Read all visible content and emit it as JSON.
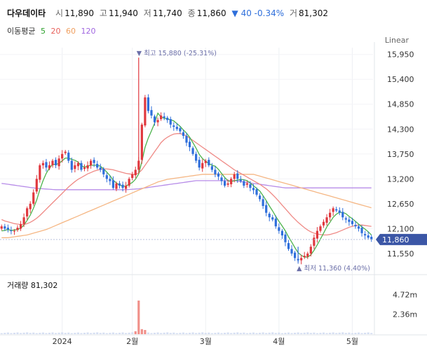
{
  "header": {
    "name": "다우데이타",
    "open_label": "시",
    "open": "11,890",
    "high_label": "고",
    "high": "11,940",
    "low_label": "저",
    "low": "11,740",
    "close_label": "종",
    "close": "11,860",
    "change": "▼ 40 -0.34%",
    "volume_label": "거",
    "volume": "81,302"
  },
  "ma_legend": {
    "label": "이동평균",
    "items": [
      {
        "period": "5",
        "color": "#2ca02c"
      },
      {
        "period": "20",
        "color": "#e8605a"
      },
      {
        "period": "60",
        "color": "#f0a060"
      },
      {
        "period": "120",
        "color": "#a066e0"
      }
    ]
  },
  "scale_type": "Linear",
  "volume_title": "거래량 81,302",
  "colors": {
    "up": "#e0383e",
    "down": "#2f6fdb",
    "current_price_bg": "#3b56a6",
    "volume_bar": "#d6dff2",
    "volume_spike": "#f0908a"
  },
  "chart_data": {
    "type": "candlestick",
    "price_axis": {
      "ticks": [
        "15,950",
        "15,400",
        "14,850",
        "14,300",
        "13,750",
        "13,200",
        "12,650",
        "12,100",
        "11,550"
      ],
      "ylim": [
        11300,
        16100
      ]
    },
    "current_price": "11,860",
    "x_labels": [
      "2024",
      "2월",
      "3월",
      "4월",
      "5월"
    ],
    "annotations": {
      "high": "▼ 최고 15,880 (-25.31%)",
      "low": "▲ 최저 11,360 (4.40%)"
    },
    "volume_axis": {
      "ticks": [
        "4.72m",
        "2.36m"
      ]
    },
    "series": {
      "close": [
        12150,
        12100,
        12080,
        12050,
        12050,
        12120,
        12200,
        12350,
        12550,
        12650,
        12900,
        13200,
        13500,
        13550,
        13450,
        13500,
        13600,
        13500,
        13650,
        13750,
        13800,
        13600,
        13400,
        13500,
        13550,
        13400,
        13450,
        13500,
        13600,
        13550,
        13450,
        13400,
        13300,
        13200,
        13150,
        13000,
        13100,
        13050,
        13000,
        13050,
        13200,
        13300,
        13400,
        13600,
        14400,
        15000,
        14700,
        14600,
        14450,
        14500,
        14600,
        14550,
        14500,
        14400,
        14350,
        14300,
        14250,
        14150,
        14000,
        13900,
        13750,
        13600,
        13450,
        13550,
        13600,
        13500,
        13400,
        13300,
        13250,
        13150,
        13050,
        13100,
        13200,
        13300,
        13200,
        13150,
        13050,
        13100,
        13000,
        12950,
        12850,
        12750,
        12600,
        12450,
        12350,
        12300,
        12150,
        12050,
        11950,
        11800,
        11650,
        11550,
        11450,
        11400,
        11450,
        11500,
        11550,
        11700,
        11900,
        12050,
        12150,
        12250,
        12350,
        12450,
        12550,
        12500,
        12450,
        12350,
        12300,
        12250,
        12200,
        12150,
        12100,
        12000,
        11950,
        11900,
        11860
      ],
      "ma5": [
        12050,
        12060,
        12080,
        12060,
        12070,
        12080,
        12110,
        12180,
        12280,
        12400,
        12550,
        12730,
        12960,
        13160,
        13320,
        13440,
        13520,
        13520,
        13540,
        13600,
        13660,
        13660,
        13630,
        13610,
        13570,
        13490,
        13460,
        13480,
        13500,
        13500,
        13500,
        13480,
        13420,
        13350,
        13270,
        13170,
        13110,
        13060,
        13040,
        13040,
        13080,
        13120,
        13190,
        13310,
        13580,
        13900,
        14100,
        14260,
        14430,
        14650,
        14570,
        14540,
        14520,
        14510,
        14480,
        14420,
        14360,
        14280,
        14210,
        14120,
        14000,
        13880,
        13740,
        13650,
        13590,
        13540,
        13500,
        13480,
        13410,
        13320,
        13230,
        13160,
        13140,
        13160,
        13170,
        13190,
        13180,
        13160,
        13110,
        13050,
        12990,
        12930,
        12830,
        12720,
        12600,
        12490,
        12370,
        12260,
        12160,
        12050,
        11920,
        11800,
        11680,
        11570,
        11510,
        11470,
        11470,
        11520,
        11620,
        11740,
        11870,
        12000,
        12140,
        12240,
        12350,
        12420,
        12460,
        12460,
        12430,
        12370,
        12320,
        12260,
        12200,
        12140,
        12090,
        12030,
        11960
      ],
      "ma20": [
        12300,
        12270,
        12250,
        12230,
        12210,
        12200,
        12190,
        12190,
        12210,
        12240,
        12280,
        12330,
        12390,
        12460,
        12530,
        12600,
        12670,
        12740,
        12810,
        12880,
        12950,
        13020,
        13080,
        13140,
        13190,
        13230,
        13270,
        13310,
        13340,
        13370,
        13390,
        13410,
        13420,
        13420,
        13410,
        13400,
        13380,
        13360,
        13340,
        13320,
        13310,
        13300,
        13300,
        13330,
        13400,
        13500,
        13600,
        13700,
        13800,
        13900,
        14000,
        14070,
        14120,
        14160,
        14190,
        14200,
        14200,
        14180,
        14150,
        14100,
        14050,
        14000,
        13950,
        13900,
        13850,
        13800,
        13750,
        13700,
        13650,
        13600,
        13550,
        13500,
        13450,
        13400,
        13360,
        13320,
        13280,
        13240,
        13200,
        13160,
        13120,
        13080,
        13030,
        12980,
        12920,
        12850,
        12780,
        12700,
        12620,
        12540,
        12460,
        12380,
        12310,
        12240,
        12180,
        12120,
        12070,
        12030,
        12000,
        11980,
        11970,
        11960,
        11960,
        11970,
        11990,
        12010,
        12040,
        12070,
        12100,
        12130,
        12150,
        12170,
        12180,
        12180,
        12170,
        12160,
        12150
      ],
      "ma60": [
        11900,
        11900,
        11900,
        11910,
        11920,
        11930,
        11940,
        11950,
        11960,
        11980,
        12000,
        12020,
        12040,
        12060,
        12080,
        12110,
        12140,
        12170,
        12200,
        12230,
        12260,
        12290,
        12320,
        12350,
        12380,
        12410,
        12440,
        12470,
        12500,
        12530,
        12560,
        12590,
        12620,
        12650,
        12680,
        12710,
        12740,
        12770,
        12800,
        12830,
        12860,
        12890,
        12920,
        12950,
        12980,
        13010,
        13040,
        13070,
        13100,
        13130,
        13150,
        13170,
        13190,
        13200,
        13210,
        13220,
        13230,
        13240,
        13250,
        13260,
        13270,
        13280,
        13290,
        13300,
        13300,
        13300,
        13300,
        13300,
        13300,
        13300,
        13300,
        13300,
        13300,
        13300,
        13300,
        13300,
        13300,
        13300,
        13300,
        13300,
        13280,
        13260,
        13240,
        13220,
        13200,
        13180,
        13160,
        13140,
        13120,
        13100,
        13080,
        13060,
        13040,
        13020,
        13000,
        12980,
        12960,
        12940,
        12920,
        12900,
        12880,
        12860,
        12840,
        12820,
        12800,
        12780,
        12760,
        12740,
        12720,
        12700,
        12680,
        12660,
        12640,
        12620,
        12600,
        12580,
        12560
      ],
      "ma120": [
        13100,
        13090,
        13080,
        13070,
        13060,
        13050,
        13040,
        13030,
        13020,
        13010,
        13000,
        12990,
        12985,
        12980,
        12975,
        12970,
        12965,
        12960,
        12960,
        12960,
        12960,
        12960,
        12960,
        12960,
        12960,
        12960,
        12960,
        12960,
        12960,
        12960,
        12960,
        12960,
        12960,
        12960,
        12960,
        12960,
        12960,
        12960,
        12960,
        12960,
        12965,
        12970,
        12975,
        12980,
        12990,
        13000,
        13010,
        13020,
        13030,
        13040,
        13050,
        13060,
        13070,
        13080,
        13090,
        13100,
        13110,
        13120,
        13130,
        13140,
        13150,
        13160,
        13160,
        13160,
        13160,
        13160,
        13160,
        13160,
        13160,
        13160,
        13160,
        13160,
        13160,
        13160,
        13150,
        13140,
        13130,
        13120,
        13110,
        13100,
        13090,
        13080,
        13070,
        13060,
        13050,
        13040,
        13030,
        13020,
        13010,
        13000,
        13000,
        13000,
        13000,
        13000,
        13000,
        13000,
        13000,
        13000,
        13000,
        13000,
        13000,
        13000,
        13000,
        13000,
        13000,
        13000,
        13000,
        13000,
        13000,
        13000,
        13000,
        13000,
        13000,
        13000,
        13000,
        13000,
        13000
      ],
      "volume_note": "volume bars small except spike near 2월 (~4.0m)"
    }
  }
}
